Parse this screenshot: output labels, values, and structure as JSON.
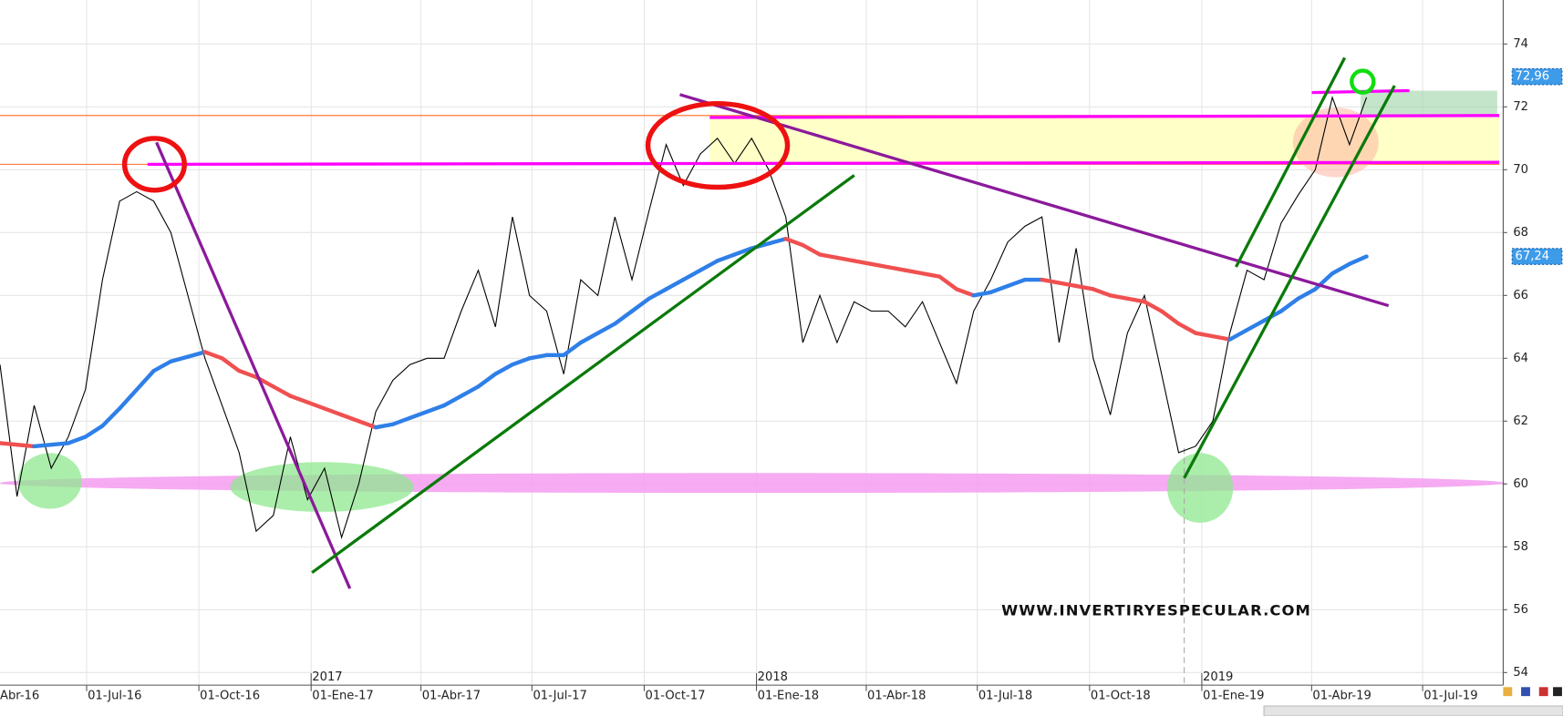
{
  "chart_data": {
    "type": "line",
    "x": [
      "2016-04-21",
      "2016-05-05",
      "2016-05-19",
      "2016-06-02",
      "2016-06-16",
      "2016-06-30",
      "2016-07-14",
      "2016-07-28",
      "2016-08-11",
      "2016-08-25",
      "2016-09-08",
      "2016-09-22",
      "2016-10-06",
      "2016-10-20",
      "2016-11-03",
      "2016-11-17",
      "2016-12-01",
      "2016-12-15",
      "2016-12-29",
      "2017-01-12",
      "2017-01-26",
      "2017-02-09",
      "2017-02-23",
      "2017-03-09",
      "2017-03-23",
      "2017-04-06",
      "2017-04-20",
      "2017-05-04",
      "2017-05-18",
      "2017-06-01",
      "2017-06-15",
      "2017-06-29",
      "2017-07-13",
      "2017-07-27",
      "2017-08-10",
      "2017-08-24",
      "2017-09-07",
      "2017-09-21",
      "2017-10-05",
      "2017-10-19",
      "2017-11-02",
      "2017-11-16",
      "2017-11-30",
      "2017-12-14",
      "2017-12-28",
      "2018-01-11",
      "2018-01-25",
      "2018-02-08",
      "2018-02-22",
      "2018-03-08",
      "2018-03-22",
      "2018-04-05",
      "2018-04-19",
      "2018-05-03",
      "2018-05-17",
      "2018-05-31",
      "2018-06-14",
      "2018-06-28",
      "2018-07-12",
      "2018-07-26",
      "2018-08-09",
      "2018-08-23",
      "2018-09-06",
      "2018-09-20",
      "2018-10-04",
      "2018-10-18",
      "2018-11-01",
      "2018-11-15",
      "2018-11-29",
      "2018-12-13",
      "2018-12-27",
      "2019-01-10",
      "2019-01-24",
      "2019-02-07",
      "2019-02-21",
      "2019-03-07",
      "2019-03-21",
      "2019-04-04",
      "2019-04-18",
      "2019-05-02",
      "2019-05-16"
    ],
    "series": [
      {
        "color": "#000000",
        "values": [
          63.8,
          59.6,
          62.5,
          60.5,
          61.5,
          63,
          66.5,
          69,
          69.3,
          69,
          68,
          66,
          64,
          62.5,
          61,
          58.5,
          59,
          61.5,
          59.5,
          60.5,
          58.3,
          60,
          62.3,
          63.3,
          63.8,
          64,
          64,
          65.5,
          66.8,
          65,
          68.5,
          66,
          65.5,
          63.5,
          66.5,
          66,
          68.5,
          66.5,
          68.7,
          70.8,
          69.5,
          70.5,
          71,
          70.2,
          71,
          70,
          68.5,
          64.5,
          66,
          64.5,
          65.8,
          65.5,
          65.5,
          65,
          65.8,
          64.5,
          63.2,
          65.5,
          66.5,
          67.7,
          68.2,
          68.5,
          64.5,
          67.5,
          64,
          62.2,
          64.8,
          66,
          63.5,
          61,
          61.2,
          62,
          64.8,
          66.8,
          66.5,
          68.3,
          69.2,
          70,
          72.3,
          70.8,
          72.3
        ]
      },
      {
        "color": "#2f7fe8",
        "down_color": "#f05050",
        "values": [
          61.3,
          61.25,
          61.2,
          61.25,
          61.3,
          61.5,
          61.85,
          62.4,
          63,
          63.6,
          63.9,
          64.05,
          64.2,
          64,
          63.6,
          63.4,
          63.1,
          62.8,
          62.6,
          62.4,
          62.2,
          62,
          61.8,
          61.9,
          62.1,
          62.3,
          62.5,
          62.8,
          63.1,
          63.5,
          63.8,
          64,
          64.1,
          64.1,
          64.5,
          64.8,
          65.1,
          65.5,
          65.9,
          66.2,
          66.5,
          66.8,
          67.1,
          67.3,
          67.5,
          67.65,
          67.8,
          67.6,
          67.3,
          67.2,
          67.1,
          67,
          66.9,
          66.8,
          66.7,
          66.6,
          66.2,
          66,
          66.1,
          66.3,
          66.5,
          66.5,
          66.4,
          66.3,
          66.2,
          66,
          65.9,
          65.8,
          65.5,
          65.1,
          64.8,
          64.7,
          64.6,
          64.9,
          65.2,
          65.5,
          65.9,
          66.2,
          66.7,
          67,
          67.24
        ]
      }
    ],
    "xlim": [
      "2016-04-21",
      "2019-09-05"
    ],
    "xticks": [
      {
        "value": "2016-04-01",
        "label": "Abr-16"
      },
      {
        "value": "2016-07-01",
        "label": "01-Jul-16"
      },
      {
        "value": "2016-10-01",
        "label": "01-Oct-16"
      },
      {
        "value": "2017-01-01",
        "label": "01-Ene-17"
      },
      {
        "value": "2017-04-01",
        "label": "01-Abr-17"
      },
      {
        "value": "2017-07-01",
        "label": "01-Jul-17"
      },
      {
        "value": "2017-10-01",
        "label": "01-Oct-17"
      },
      {
        "value": "2018-01-01",
        "label": "01-Ene-18"
      },
      {
        "value": "2018-04-01",
        "label": "01-Abr-18"
      },
      {
        "value": "2018-07-01",
        "label": "01-Jul-18"
      },
      {
        "value": "2018-10-01",
        "label": "01-Oct-18"
      },
      {
        "value": "2019-01-01",
        "label": "01-Ene-19"
      },
      {
        "value": "2019-04-01",
        "label": "01-Abr-19"
      },
      {
        "value": "2019-07-01",
        "label": "01-Jul-19"
      }
    ],
    "year_markers": [
      {
        "value": "2017-01-01",
        "label": "2017"
      },
      {
        "value": "2018-01-01",
        "label": "2018"
      },
      {
        "value": "2019-01-01",
        "label": "2019"
      }
    ],
    "ylim": [
      53.6,
      75.4
    ],
    "yticks": [
      54,
      56,
      58,
      60,
      62,
      64,
      66,
      68,
      70,
      72,
      74
    ],
    "grid": true,
    "price_badges": [
      {
        "value": 72.96,
        "label": "72,96"
      },
      {
        "value": 67.24,
        "label": "67,24"
      }
    ],
    "watermark": "WWW.INVERTIRYESPECULAR.COM"
  }
}
